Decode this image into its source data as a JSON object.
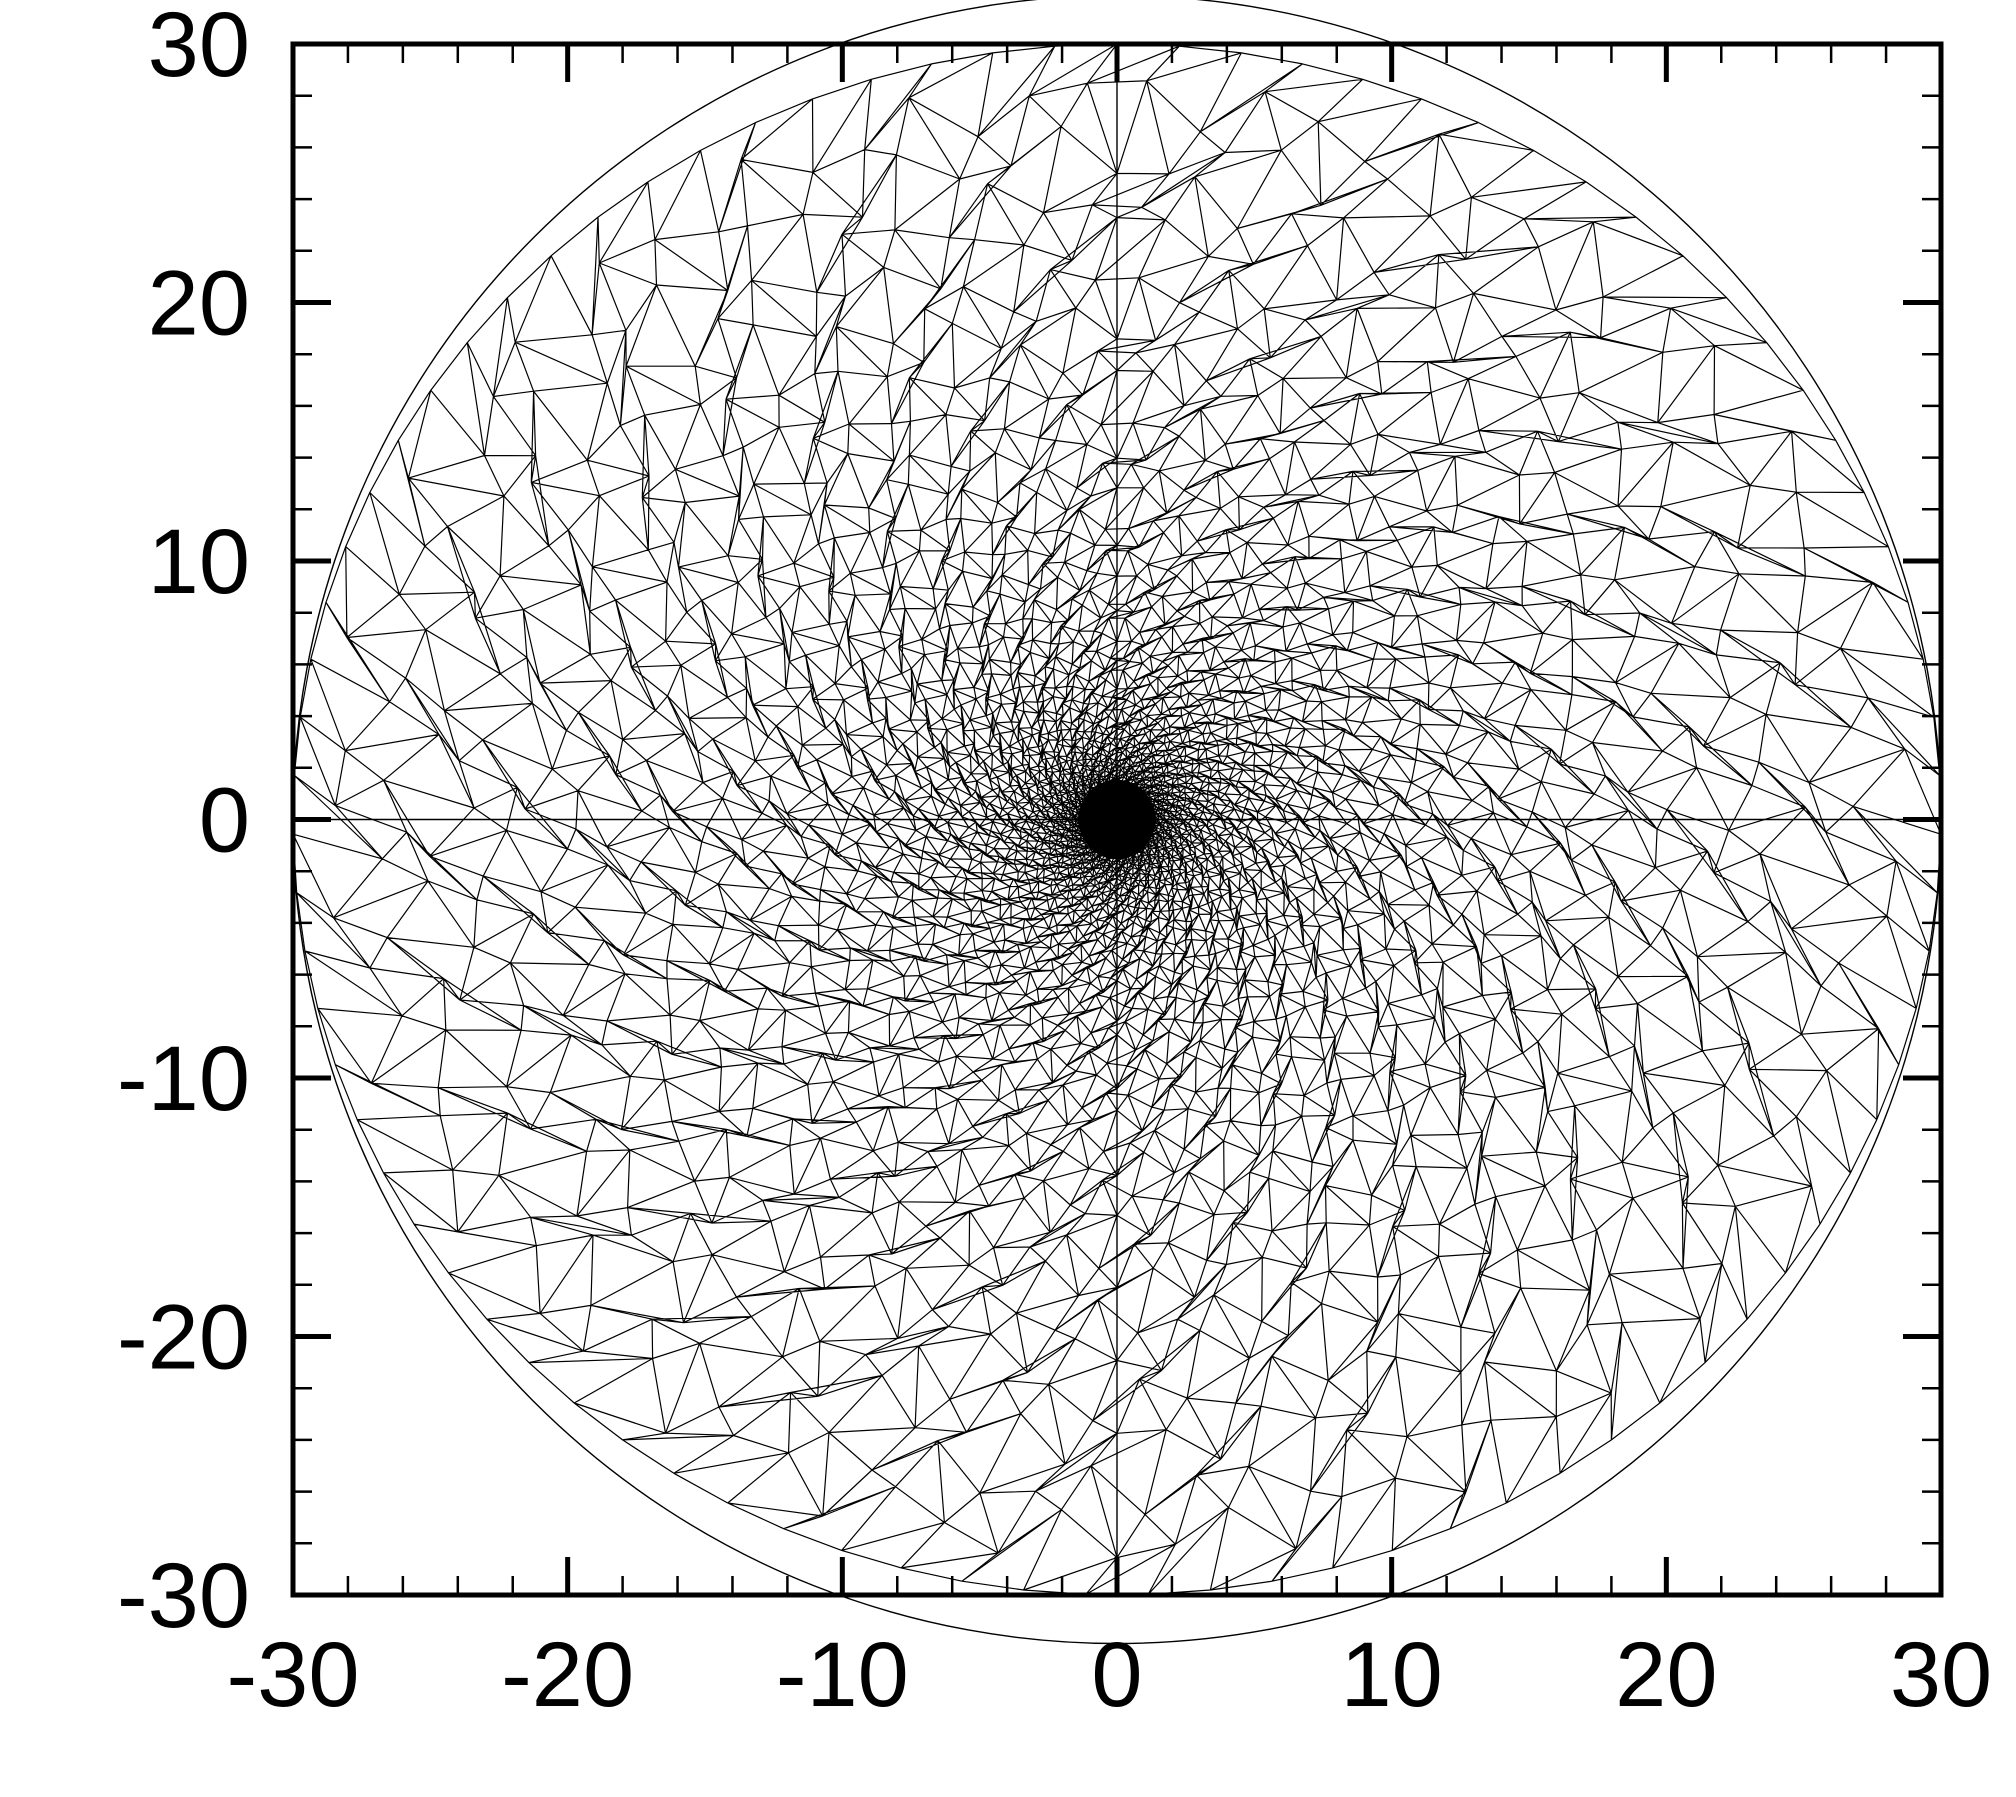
{
  "chart_data": {
    "type": "mesh",
    "title": "",
    "xlabel": "",
    "ylabel": "",
    "xlim": [
      -30,
      30
    ],
    "ylim": [
      -30,
      30
    ],
    "x_ticks": [
      "-30",
      "-20",
      "-10",
      "0",
      "10",
      "20",
      "30"
    ],
    "y_ticks": [
      "-30",
      "-20",
      "-10",
      "0",
      "10",
      "20",
      "30"
    ],
    "grid": false,
    "legend": "none",
    "domain_shape": "circle",
    "domain_radius": 30,
    "domain_center": [
      0,
      0
    ],
    "dense_region_center": [
      0,
      0
    ],
    "dense_region_radius": 1.4,
    "element_type": "triangle",
    "line_color": "#000000",
    "background_color": "#ffffff"
  }
}
